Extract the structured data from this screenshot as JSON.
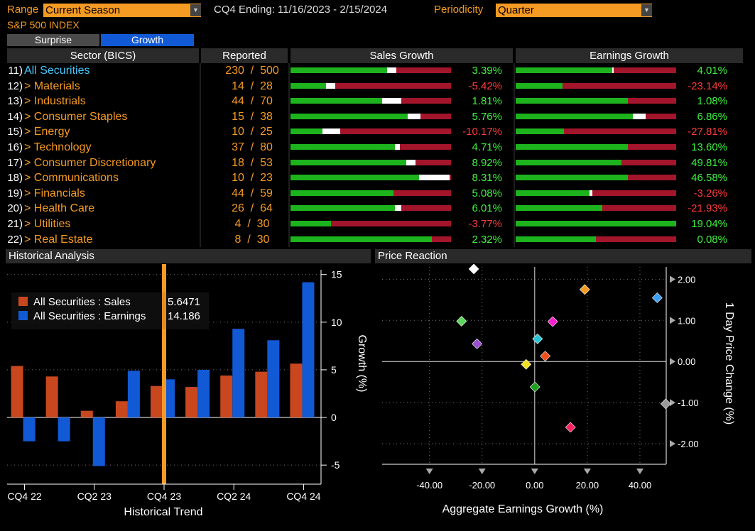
{
  "header": {
    "range_label": "Range",
    "range_value": "Current Season",
    "period_text": "CQ4 Ending: 11/16/2023 - 2/15/2024",
    "periodicity_label": "Periodicity",
    "periodicity_value": "Quarter",
    "index_name": "S&P 500 INDEX"
  },
  "tabs": {
    "surprise": "Surprise",
    "growth": "Growth"
  },
  "table": {
    "col_sector": "Sector (BICS)",
    "col_reported": "Reported",
    "col_sales": "Sales Growth",
    "col_earnings": "Earnings Growth",
    "rows": [
      {
        "num": "11)",
        "sector": "All Securities",
        "reported": "230 / 500",
        "sales": "3.39%",
        "sales_sign": "pos",
        "earn": "4.01%",
        "earn_sign": "pos",
        "sales_fill": 0.6,
        "sales_marker": 0.66,
        "earn_fill": 0.6,
        "earn_marker": 0.61
      },
      {
        "num": "12)",
        "sector": "> Materials",
        "reported": "14 / 28",
        "sales": "-5.42%",
        "sales_sign": "neg",
        "earn": "-23.14%",
        "earn_sign": "neg",
        "sales_fill": 0.22,
        "sales_marker": 0.28,
        "earn_fill": 0.29,
        "earn_marker": null
      },
      {
        "num": "13)",
        "sector": "> Industrials",
        "reported": "44 / 70",
        "sales": "1.81%",
        "sales_sign": "pos",
        "earn": "1.08%",
        "earn_sign": "pos",
        "sales_fill": 0.57,
        "sales_marker": 0.69,
        "earn_fill": 0.7,
        "earn_marker": null
      },
      {
        "num": "14)",
        "sector": "> Consumer Staples",
        "reported": "15 / 38",
        "sales": "5.76%",
        "sales_sign": "pos",
        "earn": "6.86%",
        "earn_sign": "pos",
        "sales_fill": 0.73,
        "sales_marker": 0.81,
        "earn_fill": 0.73,
        "earn_marker": 0.81
      },
      {
        "num": "15)",
        "sector": "> Energy",
        "reported": "10 / 25",
        "sales": "-10.17%",
        "sales_sign": "neg",
        "earn": "-27.81%",
        "earn_sign": "neg",
        "sales_fill": 0.2,
        "sales_marker": 0.31,
        "earn_fill": 0.3,
        "earn_marker": null
      },
      {
        "num": "16)",
        "sector": "> Technology",
        "reported": "37 / 80",
        "sales": "4.71%",
        "sales_sign": "pos",
        "earn": "13.60%",
        "earn_sign": "pos",
        "sales_fill": 0.65,
        "sales_marker": 0.68,
        "earn_fill": 0.7,
        "earn_marker": null
      },
      {
        "num": "17)",
        "sector": "> Consumer Discretionary",
        "reported": "18 / 53",
        "sales": "8.92%",
        "sales_sign": "pos",
        "earn": "49.81%",
        "earn_sign": "pos",
        "sales_fill": 0.72,
        "sales_marker": 0.78,
        "earn_fill": 0.66,
        "earn_marker": null
      },
      {
        "num": "18)",
        "sector": "> Communications",
        "reported": "10 / 23",
        "sales": "8.31%",
        "sales_sign": "pos",
        "earn": "46.58%",
        "earn_sign": "pos",
        "sales_fill": 0.8,
        "sales_marker": 0.99,
        "earn_fill": 0.7,
        "earn_marker": null
      },
      {
        "num": "19)",
        "sector": "> Financials",
        "reported": "44 / 59",
        "sales": "5.08%",
        "sales_sign": "pos",
        "earn": "-3.26%",
        "earn_sign": "neg",
        "sales_fill": 0.64,
        "sales_marker": null,
        "earn_fill": 0.46,
        "earn_marker": 0.48
      },
      {
        "num": "20)",
        "sector": "> Health Care",
        "reported": "26 / 64",
        "sales": "6.01%",
        "sales_sign": "pos",
        "earn": "-21.93%",
        "earn_sign": "neg",
        "sales_fill": 0.65,
        "sales_marker": 0.69,
        "earn_fill": 0.54,
        "earn_marker": null
      },
      {
        "num": "21)",
        "sector": "> Utilities",
        "reported": "4 / 30",
        "sales": "-3.77%",
        "sales_sign": "neg",
        "earn": "19.04%",
        "earn_sign": "pos",
        "sales_fill": 0.25,
        "sales_marker": null,
        "earn_fill": 1.0,
        "earn_marker": null
      },
      {
        "num": "22)",
        "sector": "> Real Estate",
        "reported": "8 / 30",
        "sales": "2.32%",
        "sales_sign": "pos",
        "earn": "0.08%",
        "earn_sign": "pos",
        "sales_fill": 0.88,
        "sales_marker": null,
        "earn_fill": 0.5,
        "earn_marker": null
      }
    ]
  },
  "colors": {
    "green": "#1db31d",
    "red": "#a3152b",
    "pos_text": "#3ef03e",
    "neg_text": "#ff3b3b",
    "orange": "#f59a23",
    "sales_bar": "#c9471e",
    "earn_bar": "#1259d6",
    "cursor": "#f59a23"
  },
  "historical": {
    "title": "Historical Analysis",
    "legend": [
      {
        "label": "All Securities : Sales",
        "value": "5.6471"
      },
      {
        "label": "All Securities : Earnings",
        "value": "14.186"
      }
    ],
    "xlabel": "Historical Trend",
    "ylabel": "Growth (%)"
  },
  "price_reaction": {
    "title": "Price Reaction",
    "xlabel": "Aggregate Earnings Growth (%)",
    "ylabel": "1 Day Price Change (%)"
  },
  "chart_data": [
    {
      "type": "bar",
      "categories": [
        "CQ4 22",
        "CQ1 23",
        "CQ2 23",
        "CQ3 23",
        "CQ4 23",
        "CQ1 24",
        "CQ2 24",
        "CQ3 24",
        "CQ4 24"
      ],
      "x_tick_labels": [
        "CQ4 22",
        "CQ2 23",
        "CQ4 23",
        "CQ2 24",
        "CQ4 24"
      ],
      "series": [
        {
          "name": "All Securities : Sales",
          "values": [
            5.4,
            4.3,
            0.7,
            1.7,
            3.3,
            3.2,
            4.4,
            4.8,
            5.65
          ]
        },
        {
          "name": "All Securities : Earnings",
          "values": [
            -2.5,
            -2.5,
            -5.1,
            4.9,
            4.0,
            5.0,
            9.3,
            8.1,
            14.19
          ]
        }
      ],
      "yticks": [
        "-5",
        "0",
        "5",
        "10",
        "15"
      ],
      "ylim": [
        -7,
        15.5
      ],
      "cursor_category": "CQ4 23",
      "xlabel": "Historical Trend",
      "ylabel": "Growth (%)"
    },
    {
      "type": "scatter",
      "xlim": [
        -58,
        50
      ],
      "ylim": [
        -2.5,
        2.3
      ],
      "xticks": [
        "-40.00",
        "-20.00",
        "0.00",
        "20.00",
        "40.00"
      ],
      "yticks": [
        "-2.00",
        "-1.00",
        "0.00",
        "1.00",
        "2.00"
      ],
      "xlabel": "Aggregate Earnings Growth (%)",
      "ylabel": "1 Day Price Change (%)",
      "points": [
        {
          "x": -23.14,
          "y": 2.25,
          "color": "#ffffff"
        },
        {
          "x": 19.04,
          "y": 1.75,
          "color": "#f59a23"
        },
        {
          "x": 46.58,
          "y": 1.55,
          "color": "#3ea0f0"
        },
        {
          "x": -27.81,
          "y": 0.98,
          "color": "#5cd65c"
        },
        {
          "x": 6.86,
          "y": 0.97,
          "color": "#ff1fd0"
        },
        {
          "x": 1.08,
          "y": 0.55,
          "color": "#2ec4d6"
        },
        {
          "x": -21.93,
          "y": 0.43,
          "color": "#9a4fd0"
        },
        {
          "x": 4.01,
          "y": 0.13,
          "color": "#f0501e"
        },
        {
          "x": -3.26,
          "y": -0.07,
          "color": "#f0e020"
        },
        {
          "x": 0.08,
          "y": -0.62,
          "color": "#1fa01f"
        },
        {
          "x": 49.81,
          "y": -1.03,
          "color": "#9a9a9a"
        },
        {
          "x": 13.6,
          "y": -1.6,
          "color": "#ff2060"
        }
      ]
    }
  ]
}
